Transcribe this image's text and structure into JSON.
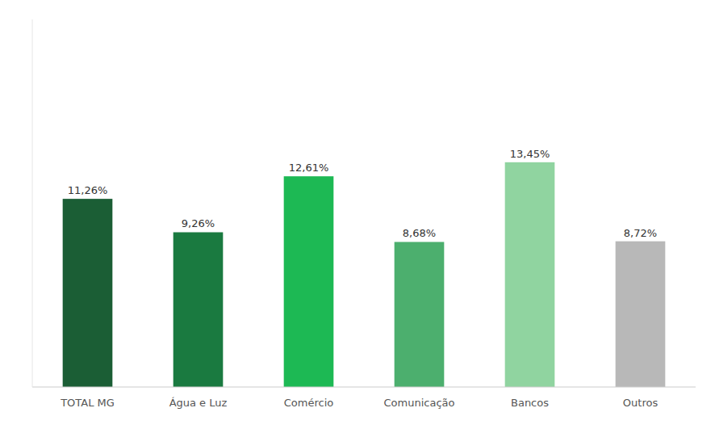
{
  "chart_data": {
    "type": "bar",
    "categories": [
      "TOTAL MG",
      "Água e Luz",
      "Comércio",
      "Comunicação",
      "Bancos",
      "Outros"
    ],
    "values": [
      11.26,
      9.26,
      12.61,
      8.68,
      13.45,
      8.72
    ],
    "value_labels": [
      "11,26%",
      "9,26%",
      "12,61%",
      "8,68%",
      "13,45%",
      "8,72%"
    ],
    "colors": [
      "#1b5e35",
      "#1a7a40",
      "#1db954",
      "#4caf6e",
      "#90d4a0",
      "#b8b8b8"
    ],
    "ylim": [
      0,
      22
    ],
    "data_labels": true,
    "tick_labels": "x",
    "grid": false
  }
}
